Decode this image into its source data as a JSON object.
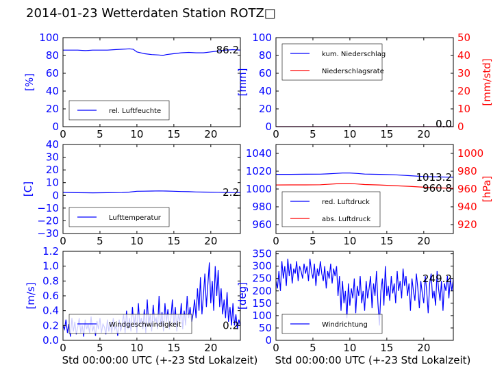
{
  "title": "2014-01-23 Wetterdaten Station ROTZ□",
  "colors": {
    "blue": "#0000ff",
    "red": "#ff0000",
    "axis": "#000000"
  },
  "chart_data": [
    {
      "id": "humidity",
      "type": "line",
      "ylabel": "[%]",
      "xlabel": "",
      "xlim": [
        0,
        24
      ],
      "xticks": [
        "0",
        "5",
        "10",
        "15",
        "20"
      ],
      "ylim": [
        0,
        100
      ],
      "yticks": [
        "0",
        "20",
        "40",
        "60",
        "80",
        "100"
      ],
      "latest_label": "86.2",
      "legend_position": "lower-left",
      "series": [
        {
          "name": "rel. Luftfeuchte",
          "color": "#0000ff",
          "x": [
            0,
            1,
            2,
            3,
            4,
            5,
            6,
            7,
            8,
            9,
            9.5,
            10,
            10.5,
            11,
            12,
            13,
            13.5,
            14,
            15,
            16,
            17,
            18,
            19,
            20,
            21,
            22,
            23,
            24
          ],
          "y": [
            86,
            86,
            86,
            85.5,
            86,
            86,
            86,
            86.5,
            87,
            87.5,
            87,
            84,
            83,
            82,
            81,
            80.5,
            80,
            81,
            82,
            83,
            83.5,
            83,
            83,
            84,
            85,
            86,
            86.5,
            86
          ]
        }
      ]
    },
    {
      "id": "precipitation",
      "type": "line",
      "ylabel": "[mm]",
      "ylabel_right": "[mm/std]",
      "xlabel": "",
      "xlim": [
        0,
        24
      ],
      "xticks": [
        "0",
        "5",
        "10",
        "15",
        "20"
      ],
      "ylim": [
        0,
        100
      ],
      "yticks": [
        "0",
        "20",
        "40",
        "60",
        "80",
        "100"
      ],
      "ylim_right": [
        0,
        50
      ],
      "yticks_right": [
        "0",
        "10",
        "20",
        "30",
        "40",
        "50"
      ],
      "latest_label": "0.0",
      "latest_label_2": "0.0",
      "legend_position": "upper-left",
      "series": [
        {
          "name": "kum. Niederschlag",
          "color": "#0000ff",
          "axis": "left",
          "x": [
            0,
            24
          ],
          "y": [
            0,
            0
          ]
        },
        {
          "name": "Niederschlagsrate",
          "color": "#ff0000",
          "axis": "right",
          "x": [
            0,
            24
          ],
          "y": [
            0,
            0
          ]
        }
      ]
    },
    {
      "id": "temperature",
      "type": "line",
      "ylabel": "[C]",
      "xlabel": "",
      "xlim": [
        0,
        24
      ],
      "xticks": [
        "0",
        "5",
        "10",
        "15",
        "20"
      ],
      "ylim": [
        -30,
        40
      ],
      "yticks": [
        "−30",
        "−20",
        "−10",
        "0",
        "10",
        "20",
        "30",
        "40"
      ],
      "latest_label": "2.2",
      "legend_position": "lower-left",
      "series": [
        {
          "name": "Lufttemperatur",
          "color": "#0000ff",
          "x": [
            0,
            2,
            4,
            6,
            8,
            9,
            10,
            11,
            12,
            13,
            14,
            15,
            16,
            17,
            18,
            19,
            20,
            21,
            22,
            23,
            24
          ],
          "y": [
            2.3,
            2.1,
            2.0,
            2.1,
            2.2,
            2.6,
            3.2,
            3.3,
            3.4,
            3.5,
            3.4,
            3.2,
            3.0,
            2.9,
            2.7,
            2.6,
            2.5,
            2.4,
            2.3,
            2.2,
            2.2
          ]
        }
      ]
    },
    {
      "id": "pressure",
      "type": "line",
      "ylabel": "",
      "ylabel_right": "[hPa]",
      "xlabel": "",
      "xlim": [
        0,
        24
      ],
      "xticks": [
        "0",
        "5",
        "10",
        "15",
        "20"
      ],
      "ylim": [
        950,
        1050
      ],
      "yticks": [
        "960",
        "980",
        "1000",
        "1020",
        "1040"
      ],
      "ylim_right": [
        910,
        1010
      ],
      "yticks_right": [
        "920",
        "940",
        "960",
        "980",
        "1000"
      ],
      "latest_label": "1013.2",
      "latest_label_2": "960.8",
      "legend_position": "lower-left",
      "series": [
        {
          "name": "red. Luftdruck",
          "color": "#0000ff",
          "axis": "left",
          "x": [
            0,
            2,
            4,
            6,
            7,
            8,
            9,
            10,
            11,
            12,
            14,
            16,
            18,
            20,
            22,
            24
          ],
          "y": [
            1016.5,
            1016.5,
            1016.6,
            1016.7,
            1017,
            1017.5,
            1018,
            1018,
            1017.5,
            1016.8,
            1016.5,
            1016,
            1015,
            1014,
            1013.5,
            1013.2
          ]
        },
        {
          "name": "abs. Luftdruck",
          "color": "#ff0000",
          "axis": "right",
          "x": [
            0,
            2,
            4,
            6,
            7,
            8,
            9,
            10,
            11,
            12,
            14,
            16,
            18,
            20,
            22,
            24
          ],
          "y": [
            964.5,
            964.6,
            964.6,
            964.8,
            965.2,
            965.8,
            966.2,
            966.2,
            965.6,
            965,
            964.5,
            963.8,
            963,
            962,
            961.2,
            960.8
          ]
        }
      ]
    },
    {
      "id": "windspeed",
      "type": "line",
      "ylabel": "[m/s]",
      "xlabel": "Std 00:00:00 UTC (+-23 Std Lokalzeit)",
      "xlim": [
        0,
        24
      ],
      "xticks": [
        "0",
        "5",
        "10",
        "15",
        "20"
      ],
      "ylim": [
        0,
        1.2
      ],
      "yticks": [
        "0.0",
        "0.2",
        "0.4",
        "0.6",
        "0.8",
        "1.0",
        "1.2"
      ],
      "latest_label": "0.2",
      "legend_position": "lower-left",
      "series": [
        {
          "name": "Windgeschwindigkeit",
          "color": "#0000ff",
          "x": [
            0,
            0.2,
            0.4,
            0.6,
            0.8,
            1.0,
            1.2,
            1.4,
            1.6,
            1.8,
            2.0,
            2.2,
            2.4,
            2.6,
            2.8,
            3.0,
            3.2,
            3.4,
            3.6,
            3.8,
            4.0,
            4.2,
            4.4,
            4.6,
            4.8,
            5.0,
            5.2,
            5.4,
            5.6,
            5.8,
            6.0,
            6.2,
            6.4,
            6.6,
            6.8,
            7.0,
            7.2,
            7.4,
            7.6,
            7.8,
            8.0,
            8.2,
            8.4,
            8.6,
            8.8,
            9.0,
            9.2,
            9.4,
            9.6,
            9.8,
            10.0,
            10.2,
            10.4,
            10.6,
            10.8,
            11.0,
            11.2,
            11.4,
            11.6,
            11.8,
            12.0,
            12.2,
            12.4,
            12.6,
            12.8,
            13.0,
            13.2,
            13.4,
            13.6,
            13.8,
            14.0,
            14.2,
            14.4,
            14.6,
            14.8,
            15.0,
            15.2,
            15.4,
            15.6,
            15.8,
            16.0,
            16.2,
            16.4,
            16.6,
            16.8,
            17.0,
            17.2,
            17.4,
            17.6,
            17.8,
            18.0,
            18.2,
            18.4,
            18.6,
            18.8,
            19.0,
            19.2,
            19.4,
            19.6,
            19.8,
            20.0,
            20.2,
            20.4,
            20.6,
            20.8,
            21.0,
            21.2,
            21.4,
            21.6,
            21.8,
            22.0,
            22.2,
            22.4,
            22.6,
            22.8,
            23.0,
            23.2,
            23.4,
            23.6,
            23.8,
            24.0
          ],
          "y": [
            0.2,
            0.15,
            0.28,
            0.1,
            0.22,
            0.05,
            0.3,
            0.12,
            0.25,
            0.08,
            0.18,
            0.3,
            0.1,
            0.2,
            0.05,
            0.28,
            0.15,
            0.22,
            0.1,
            0.32,
            0.12,
            0.2,
            0.06,
            0.26,
            0.15,
            0.3,
            0.1,
            0.22,
            0.18,
            0.08,
            0.28,
            0.12,
            0.25,
            0.1,
            0.3,
            0.15,
            0.2,
            0.06,
            0.28,
            0.12,
            0.22,
            0.35,
            0.1,
            0.4,
            0.15,
            0.3,
            0.12,
            0.45,
            0.18,
            0.35,
            0.1,
            0.5,
            0.2,
            0.3,
            0.15,
            0.42,
            0.1,
            0.55,
            0.2,
            0.35,
            0.12,
            0.48,
            0.25,
            0.3,
            0.15,
            0.6,
            0.2,
            0.38,
            0.12,
            0.5,
            0.25,
            0.42,
            0.15,
            0.3,
            0.55,
            0.2,
            0.45,
            0.12,
            0.35,
            0.25,
            0.5,
            0.15,
            0.4,
            0.2,
            0.6,
            0.3,
            0.45,
            0.25,
            0.35,
            0.55,
            0.3,
            0.7,
            0.4,
            0.85,
            0.35,
            0.6,
            0.9,
            0.45,
            0.75,
            1.05,
            0.5,
            0.8,
            0.4,
            1.0,
            0.6,
            0.95,
            0.45,
            0.7,
            0.35,
            0.55,
            0.3,
            0.65,
            0.25,
            0.45,
            0.2,
            0.5,
            0.2,
            0.35,
            0.15,
            0.28,
            0.2
          ]
        }
      ]
    },
    {
      "id": "winddirection",
      "type": "line",
      "ylabel": "[deg]",
      "xlabel": "Std 00:00:00 UTC (+-23 Std Lokalzeit)",
      "xlim": [
        0,
        24
      ],
      "xticks": [
        "0",
        "5",
        "10",
        "15",
        "20"
      ],
      "ylim": [
        0,
        360
      ],
      "yticks": [
        "0",
        "50",
        "100",
        "150",
        "200",
        "250",
        "300",
        "350"
      ],
      "latest_label": "249.2",
      "legend_position": "lower-left",
      "series": [
        {
          "name": "Windrichtung",
          "color": "#0000ff",
          "x": [
            0,
            0.2,
            0.4,
            0.6,
            0.8,
            1.0,
            1.2,
            1.4,
            1.6,
            1.8,
            2.0,
            2.2,
            2.4,
            2.6,
            2.8,
            3.0,
            3.2,
            3.4,
            3.6,
            3.8,
            4.0,
            4.2,
            4.4,
            4.6,
            4.8,
            5.0,
            5.2,
            5.4,
            5.6,
            5.8,
            6.0,
            6.2,
            6.4,
            6.6,
            6.8,
            7.0,
            7.2,
            7.4,
            7.6,
            7.8,
            8.0,
            8.2,
            8.4,
            8.6,
            8.8,
            9.0,
            9.2,
            9.4,
            9.6,
            9.8,
            10.0,
            10.2,
            10.4,
            10.6,
            10.8,
            11.0,
            11.2,
            11.4,
            11.6,
            11.8,
            12.0,
            12.2,
            12.4,
            12.6,
            12.8,
            13.0,
            13.2,
            13.4,
            13.6,
            13.8,
            14.0,
            14.2,
            14.4,
            14.6,
            14.8,
            15.0,
            15.2,
            15.4,
            15.6,
            15.8,
            16.0,
            16.2,
            16.4,
            16.6,
            16.8,
            17.0,
            17.2,
            17.4,
            17.6,
            17.8,
            18.0,
            18.2,
            18.4,
            18.6,
            18.8,
            19.0,
            19.2,
            19.4,
            19.6,
            19.8,
            20.0,
            20.2,
            20.4,
            20.6,
            20.8,
            21.0,
            21.2,
            21.4,
            21.6,
            21.8,
            22.0,
            22.2,
            22.4,
            22.6,
            22.8,
            23.0,
            23.2,
            23.4,
            23.6,
            23.8,
            24.0
          ],
          "y": [
            240,
            210,
            280,
            200,
            320,
            250,
            300,
            220,
            330,
            260,
            310,
            230,
            290,
            270,
            320,
            240,
            300,
            280,
            250,
            310,
            270,
            300,
            240,
            330,
            280,
            250,
            310,
            220,
            290,
            260,
            320,
            270,
            240,
            300,
            210,
            280,
            250,
            310,
            230,
            290,
            260,
            300,
            180,
            260,
            120,
            240,
            150,
            200,
            90,
            230,
            140,
            210,
            170,
            250,
            110,
            220,
            180,
            260,
            150,
            200,
            120,
            240,
            170,
            210,
            260,
            130,
            230,
            180,
            280,
            150,
            60,
            200,
            250,
            140,
            300,
            180,
            220,
            160,
            260,
            190,
            230,
            150,
            280,
            200,
            240,
            170,
            290,
            220,
            260,
            180,
            230,
            120,
            250,
            200,
            160,
            270,
            210,
            130,
            240,
            190,
            150,
            260,
            200,
            110,
            230,
            270,
            170,
            200,
            140,
            280,
            210,
            160,
            240,
            120,
            230,
            200,
            260,
            170,
            250,
            200,
            249
          ]
        }
      ]
    }
  ]
}
